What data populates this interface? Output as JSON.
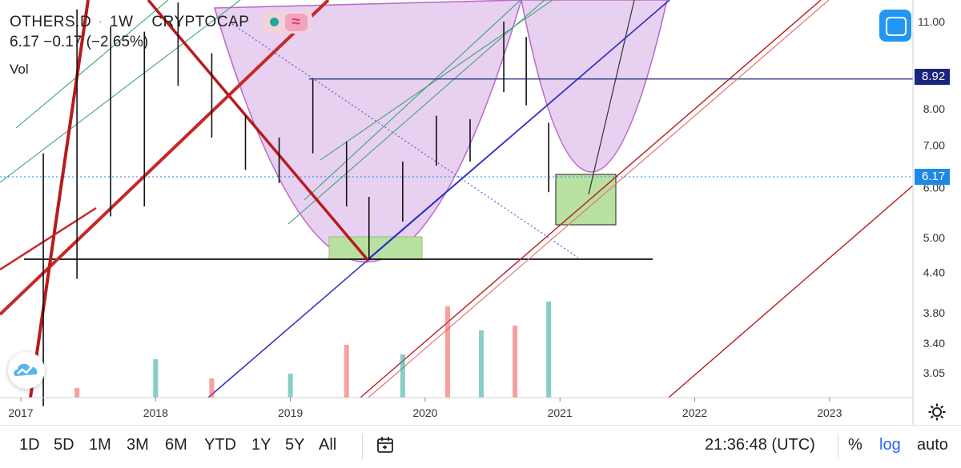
{
  "symbol": {
    "ticker": "OTHERS.D",
    "interval": "1W",
    "exchange": "CRYPTOCAP",
    "separator": "·",
    "last": "6.17",
    "change": "−0.17",
    "change_pct": "(−2.65%)",
    "indicator_label": "Vol",
    "indicator_wave_glyph": "≈"
  },
  "chart_data": {
    "type": "candlestick",
    "title": "OTHERS.D · 1W · CRYPTOCAP",
    "y_scale": "log",
    "ylim": [
      2.8,
      11.5
    ],
    "y_ticks": [
      "11.00",
      "8.00",
      "7.00",
      "6.00",
      "5.00",
      "4.40",
      "3.80",
      "3.40",
      "3.05"
    ],
    "x_ticks": [
      "2017",
      "2018",
      "2019",
      "2020",
      "2021",
      "2022",
      "2023"
    ],
    "price_labels": [
      {
        "label": "8.92",
        "color": "#1a237e"
      },
      {
        "label": "6.17",
        "color": "#1e88e5"
      }
    ],
    "candles": [
      {
        "date": "2017-03",
        "high": 6.8,
        "low": 2.7
      },
      {
        "date": "2017-06",
        "high": 11.5,
        "low": 4.3
      },
      {
        "date": "2017-09",
        "high": 10.8,
        "low": 5.4
      },
      {
        "date": "2017-12",
        "high": 10.6,
        "low": 5.6
      },
      {
        "date": "2018-03",
        "high": 11.8,
        "low": 8.7
      },
      {
        "date": "2018-06",
        "high": 9.8,
        "low": 7.2
      },
      {
        "date": "2018-09",
        "high": 7.8,
        "low": 6.4
      },
      {
        "date": "2018-12",
        "high": 7.2,
        "low": 6.1
      },
      {
        "date": "2019-03",
        "high": 8.9,
        "low": 6.8
      },
      {
        "date": "2019-06",
        "high": 7.1,
        "low": 5.6
      },
      {
        "date": "2019-08",
        "high": 5.8,
        "low": 4.6
      },
      {
        "date": "2019-11",
        "high": 6.6,
        "low": 5.3
      },
      {
        "date": "2020-02",
        "high": 7.8,
        "low": 6.5
      },
      {
        "date": "2020-05",
        "high": 7.7,
        "low": 6.6
      },
      {
        "date": "2020-08",
        "high": 11.0,
        "low": 8.5
      },
      {
        "date": "2020-10",
        "high": 10.4,
        "low": 8.1
      },
      {
        "date": "2020-12",
        "high": 7.6,
        "low": 5.9
      }
    ],
    "volume": [
      {
        "date": "2017-06",
        "value": 0.1
      },
      {
        "date": "2018-01",
        "value": 0.4
      },
      {
        "date": "2018-06",
        "value": 0.2
      },
      {
        "date": "2019-01",
        "value": 0.25
      },
      {
        "date": "2019-06",
        "value": 0.55
      },
      {
        "date": "2019-11",
        "value": 0.45
      },
      {
        "date": "2020-03",
        "value": 0.95
      },
      {
        "date": "2020-06",
        "value": 0.7
      },
      {
        "date": "2020-09",
        "value": 0.75
      },
      {
        "date": "2020-12",
        "value": 1.0
      }
    ],
    "drawings": [
      "horizontal line at 8.92",
      "support line at 4.6",
      "parallel channels",
      "cup curves",
      "rectangles"
    ]
  },
  "toolbar": {
    "intervals": [
      "1D",
      "5D",
      "1M",
      "3M",
      "6M",
      "YTD",
      "1Y",
      "5Y",
      "All"
    ],
    "time": "21:36:48 (UTC)",
    "percent": "%",
    "log": "log",
    "auto": "auto"
  },
  "colors": {
    "up": "#26a69a",
    "down": "#ef5350",
    "accent": "#2196f3",
    "log_active": "#2962ff",
    "channel_red": "#b71c1c",
    "cup_fill": "#e6ccf0",
    "cup_stroke": "#b35fc0",
    "box_fill": "#b8e0a0"
  },
  "icons": {
    "fullscreen": "fullscreen-icon",
    "logo": "tradingview-cloud-icon",
    "settings": "gear-icon",
    "goto": "goto-date-icon"
  }
}
